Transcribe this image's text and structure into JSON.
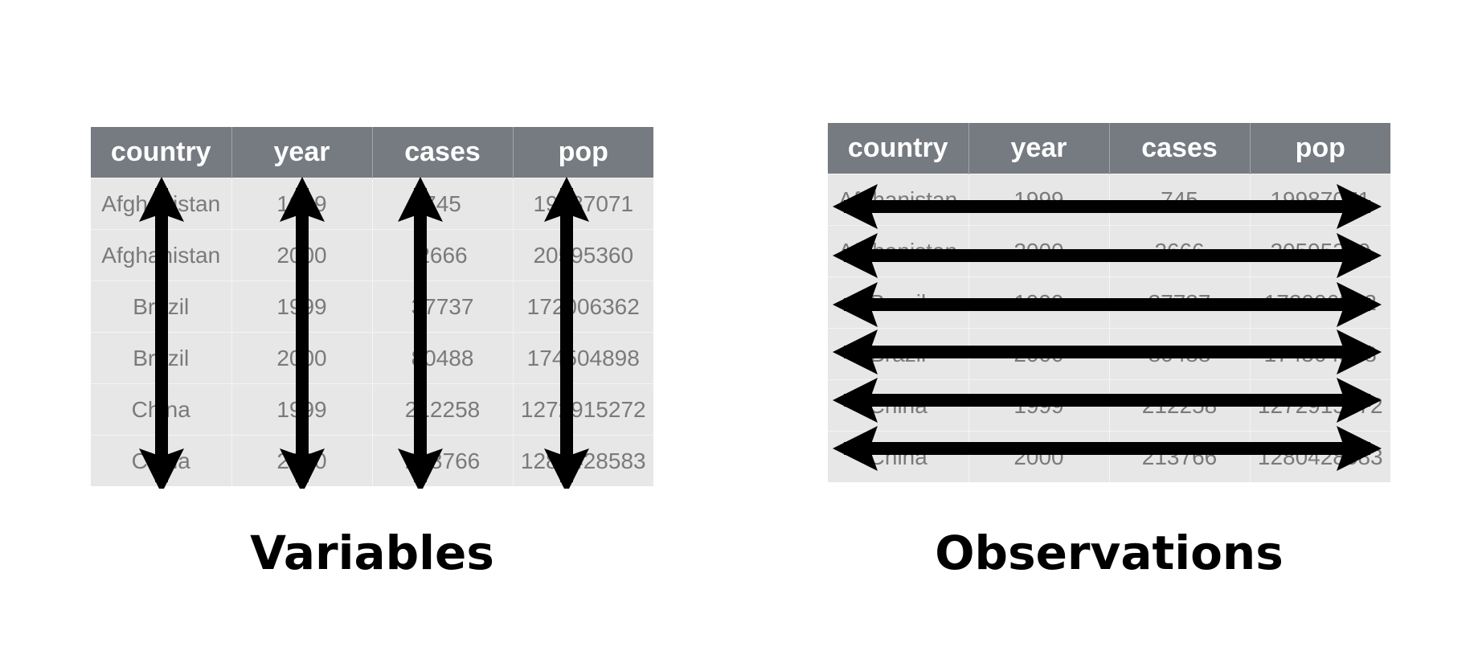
{
  "columns": [
    "country",
    "year",
    "cases",
    "pop"
  ],
  "rows": [
    [
      "Afghanistan",
      "1999",
      "745",
      "19987071"
    ],
    [
      "Afghanistan",
      "2000",
      "2666",
      "20595360"
    ],
    [
      "Brazil",
      "1999",
      "37737",
      "172006362"
    ],
    [
      "Brazil",
      "2000",
      "80488",
      "174504898"
    ],
    [
      "China",
      "1999",
      "212258",
      "1272915272"
    ],
    [
      "China",
      "2000",
      "213766",
      "1280428583"
    ]
  ],
  "captions": {
    "left": "Variables",
    "right": "Observations"
  },
  "colors": {
    "header_bg": "#767a81",
    "cell_bg": "#e6e7e6",
    "cell_text": "#7a7a7a",
    "arrow": "#000000"
  }
}
